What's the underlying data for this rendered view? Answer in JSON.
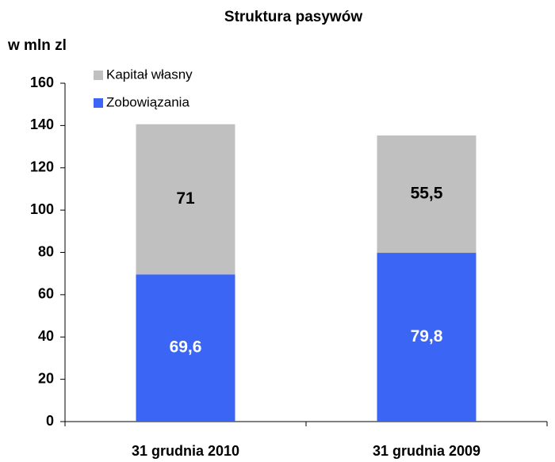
{
  "chart_data": {
    "type": "stacked_bar",
    "title": "Struktura pasywów",
    "y_label": "w mln zl",
    "categories": [
      "31 grudnia 2010",
      "31 grudnia 2009"
    ],
    "series": [
      {
        "name": "Zobowiązania",
        "color": "#3b66f5",
        "values": [
          69.6,
          79.8
        ],
        "value_labels": [
          "69,6",
          "79,8"
        ]
      },
      {
        "name": "Kapitał własny",
        "color": "#c0c0c0",
        "values": [
          71,
          55.5
        ],
        "value_labels": [
          "71",
          "55,5"
        ]
      }
    ],
    "ylim": [
      0,
      160
    ],
    "yticks": [
      0,
      20,
      40,
      60,
      80,
      100,
      120,
      140,
      160
    ],
    "legend": "upper left"
  }
}
